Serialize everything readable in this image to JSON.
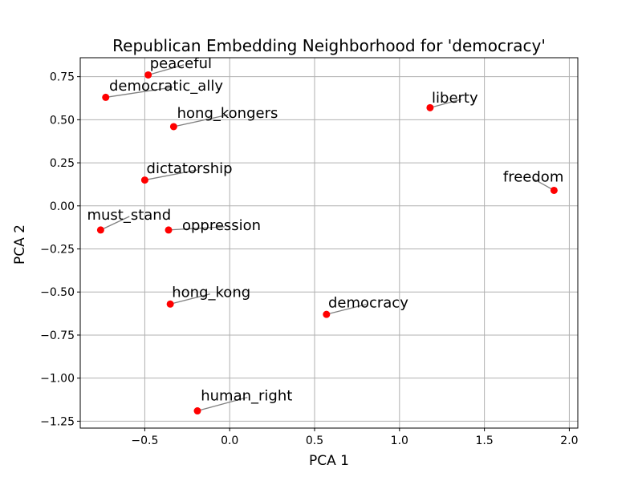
{
  "chart_data": {
    "type": "scatter",
    "title": "Republican Embedding Neighborhood for 'democracy'",
    "xlabel": "PCA 1",
    "ylabel": "PCA 2",
    "xlim": [
      -0.88,
      2.05
    ],
    "ylim": [
      -1.29,
      0.86
    ],
    "xticks": [
      -0.5,
      0.0,
      0.5,
      1.0,
      1.5,
      2.0
    ],
    "xtick_labels": [
      "−0.5",
      "0.0",
      "0.5",
      "1.0",
      "1.5",
      "2.0"
    ],
    "yticks": [
      -1.25,
      -1.0,
      -0.75,
      -0.5,
      -0.25,
      0.0,
      0.25,
      0.5,
      0.75
    ],
    "ytick_labels": [
      "−1.25",
      "−1.00",
      "−0.75",
      "−0.50",
      "−0.25",
      "0.00",
      "0.25",
      "0.50",
      "0.75"
    ],
    "grid": true,
    "colors": {
      "point": "#ff0000",
      "leader": "#808080",
      "grid": "#b0b0b0",
      "axis": "#000000"
    },
    "points": [
      {
        "label": "peaceful",
        "x": -0.48,
        "y": 0.76,
        "label_x": -0.47,
        "label_y": 0.8
      },
      {
        "label": "democratic_ally",
        "x": -0.73,
        "y": 0.63,
        "label_x": -0.71,
        "label_y": 0.67
      },
      {
        "label": "liberty",
        "x": 1.18,
        "y": 0.57,
        "label_x": 1.19,
        "label_y": 0.6
      },
      {
        "label": "hong_kongers",
        "x": -0.33,
        "y": 0.46,
        "label_x": -0.31,
        "label_y": 0.51
      },
      {
        "label": "dictatorship",
        "x": -0.5,
        "y": 0.15,
        "label_x": -0.49,
        "label_y": 0.19
      },
      {
        "label": "freedom",
        "x": 1.91,
        "y": 0.09,
        "label_x": 1.61,
        "label_y": 0.14
      },
      {
        "label": "must_stand",
        "x": -0.76,
        "y": -0.14,
        "label_x": -0.84,
        "label_y": -0.08
      },
      {
        "label": "oppression",
        "x": -0.36,
        "y": -0.14,
        "label_x": -0.28,
        "label_y": -0.14
      },
      {
        "label": "hong_kong",
        "x": -0.35,
        "y": -0.57,
        "label_x": -0.34,
        "label_y": -0.53
      },
      {
        "label": "democracy",
        "x": 0.57,
        "y": -0.63,
        "label_x": 0.58,
        "label_y": -0.59
      },
      {
        "label": "human_right",
        "x": -0.19,
        "y": -1.19,
        "label_x": -0.17,
        "label_y": -1.13
      }
    ]
  }
}
